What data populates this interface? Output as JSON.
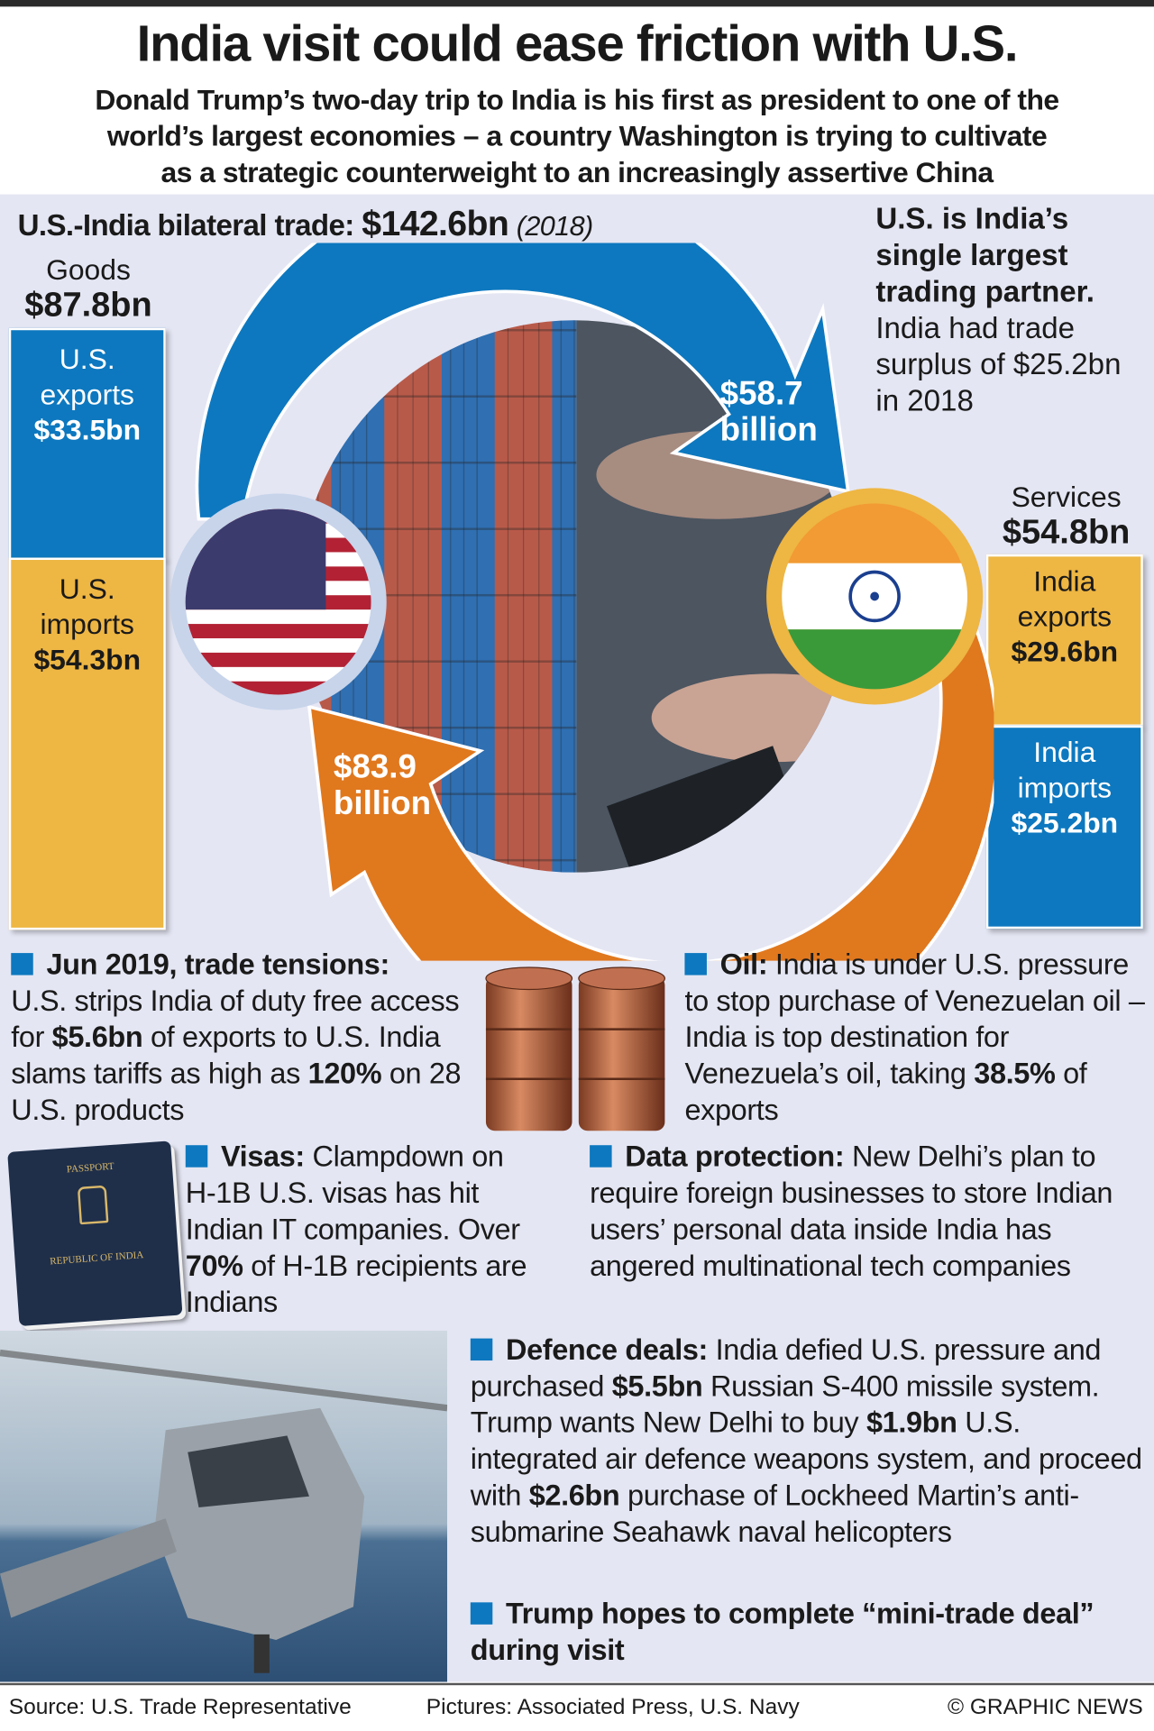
{
  "title": "India visit could ease friction with U.S.",
  "subtitle": [
    "Donald Trump’s two-day trip to India is his first as president to one of the",
    "world’s largest economies – a country Washington is trying to cultivate",
    "as a strategic counterweight to an increasingly assertive China"
  ],
  "trade": {
    "label": "U.S.-India bilateral trade:",
    "total": "$142.6bn",
    "year": "(2018)"
  },
  "goods": {
    "label": "Goods",
    "value": "$87.8bn",
    "exports_label": [
      "U.S.",
      "exports"
    ],
    "exports": "$33.5bn",
    "imports_label": [
      "U.S.",
      "imports"
    ],
    "imports": "$54.3bn"
  },
  "services": {
    "label": "Services",
    "value": "$54.8bn",
    "exports_label": [
      "India",
      "exports"
    ],
    "exports": "$29.6bn",
    "imports_label": [
      "India",
      "imports"
    ],
    "imports": "$25.2bn"
  },
  "flows": {
    "to_india": [
      "$58.7",
      "billion"
    ],
    "to_us": [
      "$83.9",
      "billion"
    ]
  },
  "partner": {
    "bold": [
      "U.S. is India’s",
      "single largest",
      "trading partner."
    ],
    "text": [
      "India had trade",
      "surplus of $25.2bn",
      "in 2018"
    ]
  },
  "colors": {
    "blue": "#0d78bf",
    "yellow": "#eeb643",
    "orange": "#e06a1e",
    "panel": "#e4e6f3"
  },
  "items": {
    "tensions": {
      "head": "Jun 2019, trade tensions:",
      "a": "U.S. strips India of duty free access for ",
      "b": "$5.6bn",
      "c": " of exports to U.S. India slams tariffs as high as ",
      "d": "120%",
      "e": " on 28 U.S. products"
    },
    "oil": {
      "head": "Oil:",
      "a": " India is under U.S. pressure to stop purchase of Venezuelan oil – India is top destination for Venezuela’s oil, taking ",
      "b": "38.5%",
      "c": " of exports"
    },
    "visas": {
      "head": "Visas:",
      "a": " Clampdown on H-1B U.S. visas has hit Indian IT companies. Over ",
      "b": "70%",
      "c": " of H-1B recipients are Indians"
    },
    "data": {
      "head": "Data protection:",
      "a": " New Delhi’s plan to require foreign businesses to store Indian users’ personal data inside India has angered multinational tech companies"
    },
    "defence": {
      "head": "Defence deals:",
      "a": " India defied U.S. pressure and purchased ",
      "b": "$5.5bn",
      "c": " Russian S-400 missile system. Trump wants New Delhi to buy ",
      "d": "$1.9bn",
      "e": " U.S. integrated air defence weapons system, and proceed with ",
      "f": "$2.6bn",
      "g": " purchase of Lockheed Martin’s anti-submarine Seahawk naval helicopters"
    },
    "hope": {
      "head": "Trump hopes to complete “mini-trade deal” during visit"
    }
  },
  "passport": {
    "top": "PASSPORT",
    "bottom": "REPUBLIC OF INDIA"
  },
  "footer": {
    "source": "Source: U.S. Trade Representative",
    "pictures": "Pictures: Associated Press, U.S. Navy",
    "credit": "© GRAPHIC NEWS"
  }
}
